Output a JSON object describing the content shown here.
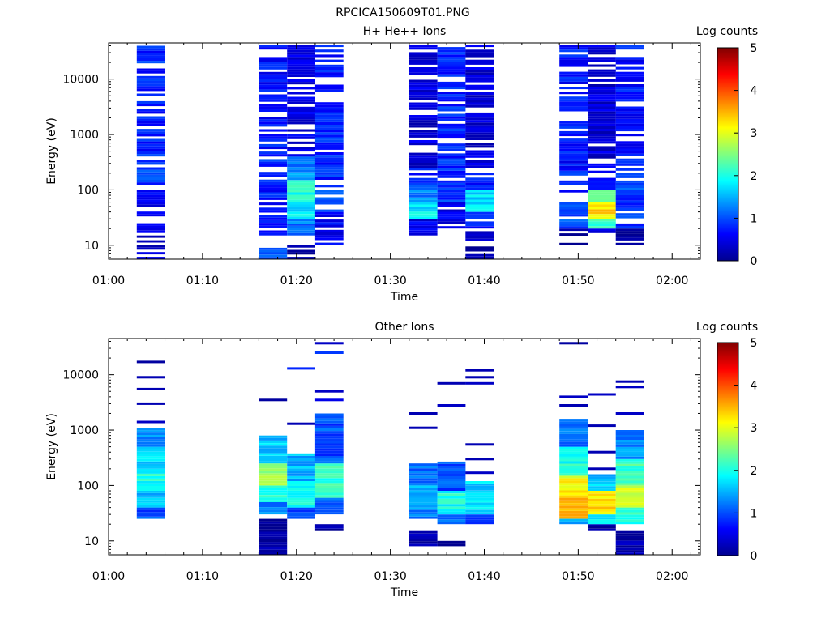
{
  "figure_title": "RPCICA150609T01.PNG",
  "chart_data": [
    {
      "type": "heatmap",
      "title": "H+ He++ Ions",
      "xlabel": "Time",
      "ylabel": "Energy (eV)",
      "x_ticks": [
        "01:00",
        "01:10",
        "01:20",
        "01:30",
        "01:40",
        "01:50",
        "02:00"
      ],
      "y_ticks": [
        "10",
        "100",
        "1000",
        "10000"
      ],
      "ylim": [
        5.6,
        45000
      ],
      "y_scale": "log",
      "colorbar": {
        "label": "Log counts",
        "range": [
          0,
          5
        ],
        "ticks": [
          "0",
          "1",
          "2",
          "3",
          "4",
          "5"
        ]
      },
      "time_blocks": [
        {
          "start": "01:03",
          "end": "01:06",
          "emin": 5.6,
          "emax": 40000,
          "bands": [
            [
              5.6,
              15,
              0.3
            ],
            [
              15,
              25,
              0.7
            ],
            [
              30,
              100,
              0.6
            ],
            [
              100,
              350,
              0.9
            ],
            [
              400,
              40000,
              0.8
            ]
          ]
        },
        {
          "start": "01:16",
          "end": "01:19",
          "emin": 5.6,
          "emax": 42000,
          "bands": [
            [
              5.6,
              9,
              1.0
            ],
            [
              15,
              100,
              0.7
            ],
            [
              100,
              400,
              0.8
            ],
            [
              400,
              42000,
              0.7
            ]
          ]
        },
        {
          "start": "01:19",
          "end": "01:22",
          "emin": 5.6,
          "emax": 42000,
          "bands": [
            [
              5.6,
              10,
              0.2
            ],
            [
              15,
              30,
              1.2
            ],
            [
              30,
              60,
              1.8
            ],
            [
              60,
              150,
              2.0
            ],
            [
              150,
              400,
              1.3
            ],
            [
              400,
              42000,
              0.5
            ]
          ]
        },
        {
          "start": "01:22",
          "end": "01:25",
          "emin": 10,
          "emax": 42000,
          "bands": [
            [
              10,
              40,
              0.6
            ],
            [
              40,
              100,
              0.9
            ],
            [
              100,
              42000,
              0.8
            ]
          ]
        },
        {
          "start": "01:32",
          "end": "01:35",
          "emin": 15,
          "emax": 42000,
          "bands": [
            [
              15,
              30,
              0.5
            ],
            [
              30,
              60,
              1.8
            ],
            [
              60,
              120,
              1.3
            ],
            [
              120,
              250,
              0.8
            ],
            [
              250,
              42000,
              0.4
            ]
          ]
        },
        {
          "start": "01:35",
          "end": "01:38",
          "emin": 20,
          "emax": 42000,
          "bands": [
            [
              20,
              60,
              0.5
            ],
            [
              60,
              200,
              0.9
            ],
            [
              200,
              42000,
              0.8
            ]
          ]
        },
        {
          "start": "01:38",
          "end": "01:41",
          "emin": 5.6,
          "emax": 42000,
          "bands": [
            [
              5.6,
              20,
              0.2
            ],
            [
              20,
              40,
              0.7
            ],
            [
              40,
              100,
              1.7
            ],
            [
              100,
              250,
              0.7
            ],
            [
              250,
              42000,
              0.4
            ]
          ]
        },
        {
          "start": "01:48",
          "end": "01:51",
          "emin": 10,
          "emax": 42000,
          "bands": [
            [
              10,
              20,
              0.2
            ],
            [
              20,
              60,
              1.0
            ],
            [
              60,
              200,
              0.8
            ],
            [
              200,
              42000,
              0.7
            ]
          ]
        },
        {
          "start": "01:51",
          "end": "01:54",
          "emin": 15,
          "emax": 42000,
          "bands": [
            [
              15,
              20,
              0.5
            ],
            [
              20,
              30,
              2.2
            ],
            [
              30,
              60,
              3.3
            ],
            [
              60,
              100,
              2.6
            ],
            [
              100,
              300,
              0.5
            ],
            [
              300,
              42000,
              0.4
            ]
          ]
        },
        {
          "start": "01:54",
          "end": "01:57",
          "emin": 10,
          "emax": 42000,
          "bands": [
            [
              10,
              20,
              0.2
            ],
            [
              20,
              80,
              0.9
            ],
            [
              80,
              300,
              1.0
            ],
            [
              300,
              42000,
              0.7
            ]
          ]
        }
      ]
    },
    {
      "type": "heatmap",
      "title": "Other Ions",
      "xlabel": "Time",
      "ylabel": "Energy (eV)",
      "x_ticks": [
        "01:00",
        "01:10",
        "01:20",
        "01:30",
        "01:40",
        "01:50",
        "02:00"
      ],
      "y_ticks": [
        "10",
        "100",
        "1000",
        "10000"
      ],
      "ylim": [
        5.6,
        45000
      ],
      "y_scale": "log",
      "colorbar": {
        "label": "Log counts",
        "range": [
          0,
          5
        ],
        "ticks": [
          "0",
          "1",
          "2",
          "3",
          "4",
          "5"
        ]
      },
      "time_blocks": [
        {
          "start": "01:03",
          "end": "01:06",
          "emin": 25,
          "emax": 1100,
          "bands": [
            [
              25,
              40,
              1.0
            ],
            [
              40,
              80,
              1.6
            ],
            [
              80,
              200,
              2.0
            ],
            [
              200,
              500,
              1.7
            ],
            [
              500,
              1100,
              1.3
            ]
          ],
          "lines": [
            [
              1400,
              0.3
            ],
            [
              3000,
              0.2
            ],
            [
              5500,
              0.2
            ],
            [
              9000,
              0.2
            ],
            [
              17000,
              0.1
            ]
          ]
        },
        {
          "start": "01:16",
          "end": "01:19",
          "emin": 5.6,
          "emax": 800,
          "bands": [
            [
              5.6,
              25,
              0.1
            ],
            [
              30,
              50,
              1.3
            ],
            [
              50,
              100,
              2.0
            ],
            [
              100,
              250,
              2.6
            ],
            [
              250,
              800,
              1.6
            ]
          ],
          "lines": [
            [
              3500,
              0.1
            ]
          ]
        },
        {
          "start": "01:19",
          "end": "01:22",
          "emin": 25,
          "emax": 380,
          "bands": [
            [
              25,
              40,
              1.0
            ],
            [
              40,
              120,
              1.9
            ],
            [
              120,
              380,
              1.5
            ]
          ],
          "lines": [
            [
              1300,
              0.2
            ],
            [
              13000,
              0.8
            ]
          ]
        },
        {
          "start": "01:22",
          "end": "01:25",
          "emin": 15,
          "emax": 2000,
          "bands": [
            [
              15,
              20,
              0.2
            ],
            [
              30,
              60,
              1.2
            ],
            [
              60,
              250,
              2.1
            ],
            [
              250,
              2000,
              1.0
            ]
          ],
          "lines": [
            [
              3500,
              0.5
            ],
            [
              5000,
              0.3
            ],
            [
              25000,
              0.9
            ],
            [
              37000,
              0.3
            ]
          ]
        },
        {
          "start": "01:32",
          "end": "01:35",
          "emin": 8,
          "emax": 250,
          "bands": [
            [
              8,
              15,
              0.1
            ],
            [
              25,
              40,
              1.3
            ],
            [
              40,
              100,
              1.6
            ],
            [
              100,
              250,
              1.1
            ]
          ],
          "lines": [
            [
              1100,
              0.2
            ],
            [
              2000,
              0.2
            ]
          ]
        },
        {
          "start": "01:35",
          "end": "01:38",
          "emin": 8,
          "emax": 270,
          "bands": [
            [
              8,
              10,
              0.1
            ],
            [
              20,
              30,
              1.1
            ],
            [
              30,
              80,
              2.0
            ],
            [
              80,
              270,
              1.0
            ]
          ],
          "lines": [
            [
              2800,
              0.3
            ],
            [
              7000,
              0.2
            ]
          ]
        },
        {
          "start": "01:38",
          "end": "01:41",
          "emin": 20,
          "emax": 120,
          "bands": [
            [
              20,
              30,
              1.0
            ],
            [
              30,
              60,
              1.8
            ],
            [
              60,
              120,
              1.7
            ]
          ],
          "lines": [
            [
              170,
              0.3
            ],
            [
              300,
              0.2
            ],
            [
              550,
              0.2
            ],
            [
              7000,
              0.3
            ],
            [
              9000,
              0.2
            ],
            [
              12000,
              0.2
            ]
          ]
        },
        {
          "start": "01:48",
          "end": "01:51",
          "emin": 20,
          "emax": 1600,
          "bands": [
            [
              20,
              25,
              1.5
            ],
            [
              25,
              60,
              3.6
            ],
            [
              60,
              150,
              3.1
            ],
            [
              150,
              500,
              2.0
            ],
            [
              500,
              1600,
              1.1
            ]
          ],
          "lines": [
            [
              2800,
              0.2
            ],
            [
              4000,
              0.3
            ],
            [
              37000,
              0.1
            ]
          ]
        },
        {
          "start": "01:51",
          "end": "01:54",
          "emin": 15,
          "emax": 160,
          "bands": [
            [
              15,
              20,
              0.2
            ],
            [
              20,
              30,
              1.8
            ],
            [
              30,
              80,
              3.3
            ],
            [
              80,
              160,
              1.6
            ]
          ],
          "lines": [
            [
              200,
              0.2
            ],
            [
              400,
              0.2
            ],
            [
              1200,
              0.2
            ],
            [
              4400,
              0.3
            ]
          ]
        },
        {
          "start": "01:54",
          "end": "01:57",
          "emin": 5.6,
          "emax": 1000,
          "bands": [
            [
              5.6,
              15,
              0.1
            ],
            [
              20,
              40,
              2.1
            ],
            [
              40,
              100,
              3.0
            ],
            [
              100,
              300,
              2.2
            ],
            [
              300,
              1000,
              1.3
            ]
          ],
          "lines": [
            [
              2000,
              0.3
            ],
            [
              6000,
              0.3
            ],
            [
              7500,
              0.2
            ]
          ]
        }
      ]
    }
  ]
}
